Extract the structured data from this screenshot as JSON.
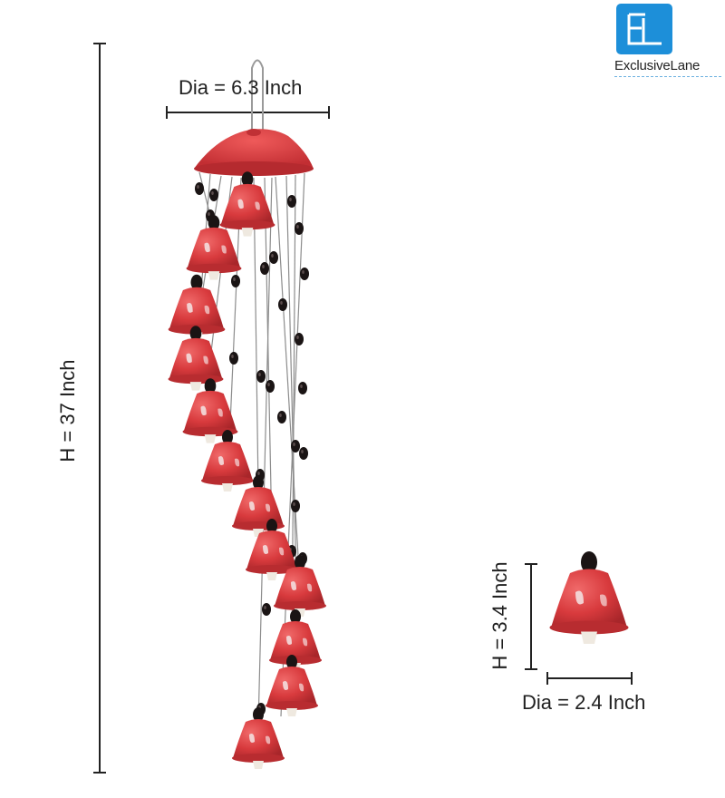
{
  "brand": {
    "name": "ExclusiveLane",
    "logo_letters": "EL",
    "color": "#1d8fd9"
  },
  "product": {
    "bell_color": "#d83a3d",
    "bead_color": "#1a1414",
    "clapper_color": "#efe9e0",
    "bell_count": 13
  },
  "dimensions": {
    "top_diameter": "Dia = 6.3 Inch",
    "total_height": "H = 37 Inch",
    "bell_height": "H = 3.4 Inch",
    "bell_diameter": "Dia = 2.4 Inch"
  }
}
